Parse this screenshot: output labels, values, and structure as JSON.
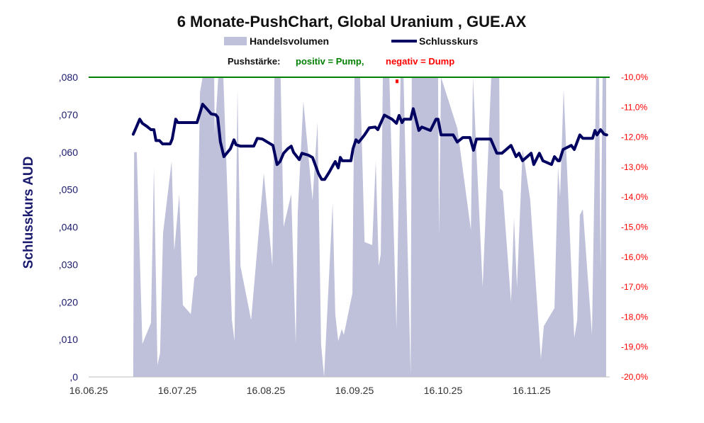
{
  "chart_data": {
    "type": "line",
    "title": "6 Monate-PushChart, Global Uranium , GUE.AX",
    "legend": {
      "placement": "top",
      "items": [
        {
          "label": "Handelsvolumen",
          "type": "area",
          "color": "#bfc0da"
        },
        {
          "label": "Schlusskurs",
          "type": "line",
          "color": "#000060"
        }
      ]
    },
    "push_legend": {
      "label": "Pushstärke:",
      "positive": "positiv = Pump,",
      "negative": "negativ = Dump",
      "positive_color": "#008000",
      "negative_color": "#ff0000"
    },
    "ylabel": "Schlusskurs AUD",
    "ylim": [
      0,
      0.08
    ],
    "y_ticks": [
      ",0",
      ",010",
      ",020",
      ",030",
      ",040",
      ",050",
      ",060",
      ",070",
      ",080"
    ],
    "y2lim": [
      -20,
      -10
    ],
    "y2_ticks": [
      "-20,0%",
      "-19,0%",
      "-18,0%",
      "-17,0%",
      "-16,0%",
      "-15,0%",
      "-14,0%",
      "-13,0%",
      "-12,0%",
      "-11,0%",
      "-10,0%"
    ],
    "x_unit": "days since 16.06.25",
    "xlim": [
      0,
      180
    ],
    "x_ticks": [
      {
        "day": 0,
        "label": "16.06.25"
      },
      {
        "day": 30,
        "label": "16.07.25"
      },
      {
        "day": 60,
        "label": "16.08.25"
      },
      {
        "day": 90,
        "label": "16.09.25"
      },
      {
        "day": 120,
        "label": "16.10.25"
      },
      {
        "day": 150,
        "label": "16.11.25"
      }
    ],
    "colors": {
      "price": "#000060",
      "volume": "#bfc0da",
      "pump_line": "#008000",
      "dump": "#ff0000",
      "left_axis_text": "#1a1a6e",
      "right_axis_text": "#ff0000"
    },
    "pump_line_value": -10,
    "push_points": [
      {
        "day": 104.4,
        "value": -10.1
      }
    ],
    "price": [
      [
        15.1,
        0.0648
      ],
      [
        15.8,
        0.066
      ],
      [
        17.3,
        0.0688
      ],
      [
        18.2,
        0.0677
      ],
      [
        19.7,
        0.0669
      ],
      [
        21.1,
        0.066
      ],
      [
        22.1,
        0.066
      ],
      [
        22.8,
        0.0631
      ],
      [
        24.0,
        0.0631
      ],
      [
        25.0,
        0.0622
      ],
      [
        27.6,
        0.0622
      ],
      [
        28.3,
        0.0635
      ],
      [
        29.5,
        0.0688
      ],
      [
        30.2,
        0.0679
      ],
      [
        36.7,
        0.0679
      ],
      [
        38.6,
        0.0728
      ],
      [
        40.3,
        0.0713
      ],
      [
        41.5,
        0.0702
      ],
      [
        43.0,
        0.07
      ],
      [
        43.7,
        0.0693
      ],
      [
        44.6,
        0.0628
      ],
      [
        45.8,
        0.0588
      ],
      [
        48.0,
        0.0609
      ],
      [
        49.2,
        0.0633
      ],
      [
        49.9,
        0.062
      ],
      [
        51.4,
        0.0616
      ],
      [
        55.9,
        0.0616
      ],
      [
        57.1,
        0.0637
      ],
      [
        58.8,
        0.0635
      ],
      [
        62.4,
        0.0618
      ],
      [
        63.8,
        0.0567
      ],
      [
        64.8,
        0.0575
      ],
      [
        66.0,
        0.0597
      ],
      [
        67.4,
        0.0609
      ],
      [
        68.6,
        0.0616
      ],
      [
        69.4,
        0.0599
      ],
      [
        71.3,
        0.058
      ],
      [
        72.2,
        0.0597
      ],
      [
        74.4,
        0.0592
      ],
      [
        75.8,
        0.0586
      ],
      [
        77.8,
        0.0543
      ],
      [
        78.9,
        0.0527
      ],
      [
        79.9,
        0.0527
      ],
      [
        81.4,
        0.0546
      ],
      [
        82.6,
        0.0563
      ],
      [
        83.5,
        0.0575
      ],
      [
        84.5,
        0.0558
      ],
      [
        85.2,
        0.0586
      ],
      [
        85.9,
        0.0577
      ],
      [
        88.8,
        0.0577
      ],
      [
        89.5,
        0.0609
      ],
      [
        90.5,
        0.0633
      ],
      [
        91.4,
        0.0626
      ],
      [
        93.4,
        0.0646
      ],
      [
        95.0,
        0.0665
      ],
      [
        97.0,
        0.0667
      ],
      [
        97.9,
        0.066
      ],
      [
        100.1,
        0.0699
      ],
      [
        102.7,
        0.0688
      ],
      [
        104.2,
        0.0677
      ],
      [
        105.1,
        0.0698
      ],
      [
        106.1,
        0.0679
      ],
      [
        106.8,
        0.0688
      ],
      [
        109.0,
        0.0688
      ],
      [
        109.9,
        0.0716
      ],
      [
        111.8,
        0.0658
      ],
      [
        112.8,
        0.0667
      ],
      [
        115.7,
        0.0658
      ],
      [
        117.6,
        0.0688
      ],
      [
        118.3,
        0.0688
      ],
      [
        119.3,
        0.0646
      ],
      [
        123.4,
        0.0646
      ],
      [
        124.8,
        0.0627
      ],
      [
        126.7,
        0.0639
      ],
      [
        129.1,
        0.0639
      ],
      [
        130.3,
        0.0605
      ],
      [
        131.3,
        0.0635
      ],
      [
        136.1,
        0.0635
      ],
      [
        138.2,
        0.0597
      ],
      [
        139.9,
        0.0597
      ],
      [
        143.0,
        0.0618
      ],
      [
        144.7,
        0.0588
      ],
      [
        145.7,
        0.0597
      ],
      [
        146.9,
        0.0577
      ],
      [
        149.8,
        0.0597
      ],
      [
        150.7,
        0.0567
      ],
      [
        152.6,
        0.0597
      ],
      [
        153.8,
        0.0577
      ],
      [
        156.7,
        0.0567
      ],
      [
        157.7,
        0.0588
      ],
      [
        158.9,
        0.0577
      ],
      [
        159.4,
        0.0577
      ],
      [
        160.6,
        0.0607
      ],
      [
        163.4,
        0.0618
      ],
      [
        164.4,
        0.0607
      ],
      [
        166.3,
        0.0646
      ],
      [
        167.3,
        0.0637
      ],
      [
        170.6,
        0.0637
      ],
      [
        171.4,
        0.0658
      ],
      [
        172.1,
        0.0646
      ],
      [
        173.3,
        0.066
      ],
      [
        174.5,
        0.0648
      ],
      [
        175.4,
        0.0646
      ]
    ],
    "volume_unit": "percent of axis height (values above 100 are clipped)",
    "volume": [
      [
        15.1,
        0
      ],
      [
        15.4,
        75
      ],
      [
        16.3,
        75
      ],
      [
        18.2,
        11
      ],
      [
        21.1,
        18
      ],
      [
        22.1,
        70
      ],
      [
        23.3,
        4
      ],
      [
        24.2,
        8
      ],
      [
        25.2,
        48
      ],
      [
        28.1,
        72
      ],
      [
        29.0,
        42
      ],
      [
        30.7,
        61
      ],
      [
        31.9,
        24
      ],
      [
        34.6,
        21
      ],
      [
        35.8,
        33
      ],
      [
        36.7,
        34
      ],
      [
        37.7,
        95
      ],
      [
        38.6,
        110
      ],
      [
        42.5,
        110
      ],
      [
        42.7,
        81
      ],
      [
        43.9,
        110
      ],
      [
        45.6,
        110
      ],
      [
        48.5,
        19
      ],
      [
        49.4,
        12
      ],
      [
        50.4,
        96
      ],
      [
        51.4,
        37
      ],
      [
        55.0,
        19
      ],
      [
        59.3,
        68
      ],
      [
        62.2,
        37
      ],
      [
        62.9,
        110
      ],
      [
        65.0,
        110
      ],
      [
        66.0,
        50
      ],
      [
        68.6,
        61
      ],
      [
        70.1,
        11
      ],
      [
        70.8,
        55
      ],
      [
        72.7,
        92
      ],
      [
        75.8,
        59
      ],
      [
        77.5,
        85
      ],
      [
        78.7,
        11
      ],
      [
        79.7,
        0
      ],
      [
        82.6,
        58
      ],
      [
        83.5,
        21
      ],
      [
        84.5,
        12
      ],
      [
        85.7,
        16
      ],
      [
        86.4,
        14
      ],
      [
        89.3,
        28
      ],
      [
        90.0,
        110
      ],
      [
        91.9,
        110
      ],
      [
        93.4,
        45
      ],
      [
        96.0,
        44
      ],
      [
        97.2,
        72
      ],
      [
        98.2,
        37
      ],
      [
        98.9,
        41
      ],
      [
        99.6,
        110
      ],
      [
        101.8,
        110
      ],
      [
        104.2,
        16
      ],
      [
        105.6,
        110
      ],
      [
        106.6,
        110
      ],
      [
        109.0,
        0.5
      ],
      [
        109.4,
        110
      ],
      [
        118.3,
        110
      ],
      [
        118.6,
        47
      ],
      [
        119.3,
        110
      ],
      [
        124.8,
        83
      ],
      [
        129.4,
        49
      ],
      [
        130.1,
        110
      ],
      [
        133.4,
        30
      ],
      [
        136.3,
        110
      ],
      [
        139.0,
        110
      ],
      [
        139.2,
        63
      ],
      [
        140.2,
        62
      ],
      [
        143.0,
        25
      ],
      [
        144.0,
        53
      ],
      [
        145.0,
        30
      ],
      [
        146.9,
        76
      ],
      [
        149.5,
        59
      ],
      [
        153.1,
        6
      ],
      [
        154.1,
        17
      ],
      [
        157.7,
        23
      ],
      [
        158.9,
        70
      ],
      [
        159.6,
        60
      ],
      [
        160.8,
        96
      ],
      [
        164.4,
        13
      ],
      [
        165.4,
        19
      ],
      [
        166.3,
        54
      ],
      [
        167.3,
        56
      ],
      [
        170.4,
        14
      ],
      [
        171.8,
        110
      ],
      [
        172.8,
        110
      ],
      [
        173.3,
        35
      ],
      [
        174.0,
        110
      ],
      [
        175.2,
        110
      ],
      [
        175.2,
        0
      ]
    ]
  }
}
